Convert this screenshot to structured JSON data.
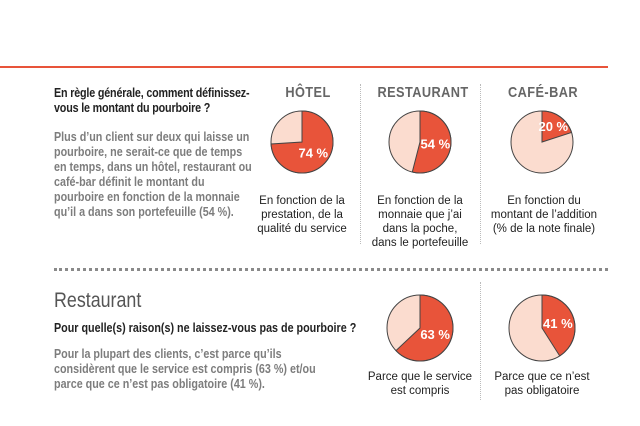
{
  "colors": {
    "accent": "#e8543a",
    "light": "#fbdccf",
    "grey_text": "#7d7d7d",
    "heading_grey": "#666666"
  },
  "section1": {
    "question": "En règle générale, comment définissez-vous le montant du pourboire ?",
    "paragraph": "Plus d’un client sur deux qui laisse un pourboire, ne serait-ce que de temps en temps, dans un hôtel, restaurant ou café-bar définit le montant du pourboire en fonction de la monnaie qu’il a dans son portefeuille (54 %).",
    "columns": [
      {
        "header": "HÔTEL",
        "label": "74 %",
        "caption_lines": [
          "En fonction de la",
          "prestation, de la",
          "qualité du service"
        ]
      },
      {
        "header": "RESTAURANT",
        "label": "54 %",
        "caption_lines": [
          "En fonction de la",
          "monnaie que j’ai",
          "dans la poche,",
          "dans le portefeuille"
        ]
      },
      {
        "header": "CAFÉ-BAR",
        "label": "20 %",
        "caption_lines": [
          "En fonction du",
          "montant de l’addition",
          "(% de la note finale)"
        ]
      }
    ]
  },
  "section2": {
    "title": "Restaurant",
    "question": "Pour quelle(s) raison(s)  ne laissez-vous pas de pourboire ?",
    "paragraph": "Pour la plupart des clients, c’est parce qu’ils considèrent que le service est compris (63 %) et/ou parce que ce n’est pas obligatoire (41 %).",
    "charts": [
      {
        "label": "63 %",
        "caption_lines": [
          "Parce que le service",
          "est compris"
        ]
      },
      {
        "label": "41 %",
        "caption_lines": [
          "Parce que ce n’est",
          "pas obligatoire"
        ]
      }
    ]
  },
  "chart_data": [
    {
      "type": "pie",
      "title": "HÔTEL",
      "categories": [
        "En fonction de la prestation, de la qualité du service",
        ""
      ],
      "values": [
        74,
        26
      ]
    },
    {
      "type": "pie",
      "title": "RESTAURANT",
      "categories": [
        "En fonction de la monnaie que j’ai dans la poche, dans le portefeuille",
        ""
      ],
      "values": [
        54,
        46
      ]
    },
    {
      "type": "pie",
      "title": "CAFÉ-BAR",
      "categories": [
        "En fonction du montant de l’addition (% de la note finale)",
        ""
      ],
      "values": [
        20,
        80
      ]
    },
    {
      "type": "pie",
      "title": "",
      "categories": [
        "Parce que le service est compris",
        ""
      ],
      "values": [
        63,
        37
      ]
    },
    {
      "type": "pie",
      "title": "",
      "categories": [
        "Parce que ce n’est pas obligatoire",
        ""
      ],
      "values": [
        41,
        59
      ]
    }
  ]
}
